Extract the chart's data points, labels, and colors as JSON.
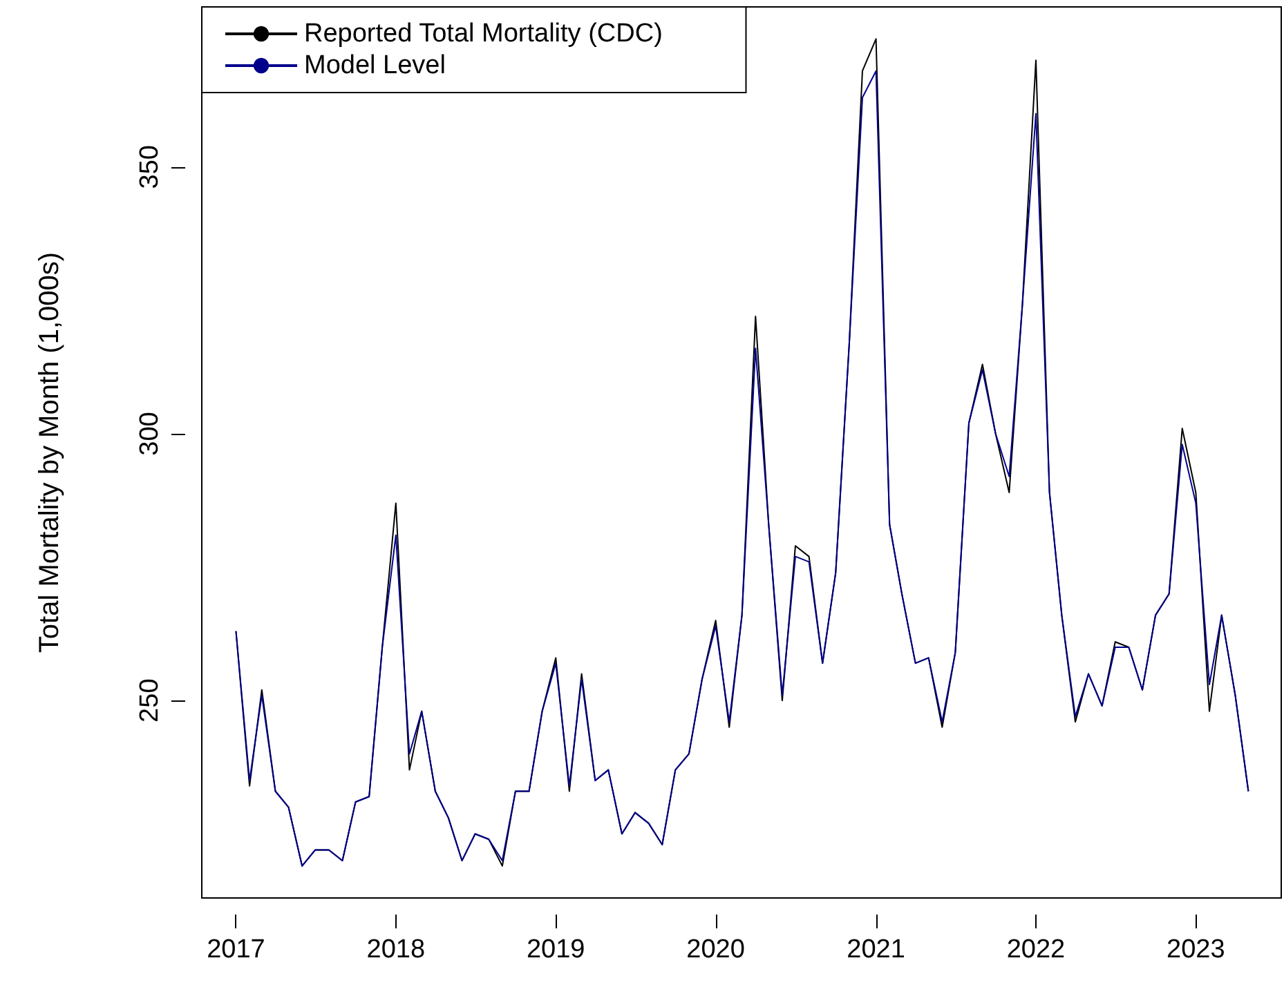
{
  "chart_data": {
    "type": "line",
    "ylabel": "Total Mortality by Month (1,000s)",
    "x": [
      "2017-01",
      "2017-02",
      "2017-03",
      "2017-04",
      "2017-05",
      "2017-06",
      "2017-07",
      "2017-08",
      "2017-09",
      "2017-10",
      "2017-11",
      "2017-12",
      "2018-01",
      "2018-02",
      "2018-03",
      "2018-04",
      "2018-05",
      "2018-06",
      "2018-07",
      "2018-08",
      "2018-09",
      "2018-10",
      "2018-11",
      "2018-12",
      "2019-01",
      "2019-02",
      "2019-03",
      "2019-04",
      "2019-05",
      "2019-06",
      "2019-07",
      "2019-08",
      "2019-09",
      "2019-10",
      "2019-11",
      "2019-12",
      "2020-01",
      "2020-02",
      "2020-03",
      "2020-04",
      "2020-05",
      "2020-06",
      "2020-07",
      "2020-08",
      "2020-09",
      "2020-10",
      "2020-11",
      "2020-12",
      "2021-01",
      "2021-02",
      "2021-03",
      "2021-04",
      "2021-05",
      "2021-06",
      "2021-07",
      "2021-08",
      "2021-09",
      "2021-10",
      "2021-11",
      "2021-12",
      "2022-01",
      "2022-02",
      "2022-03",
      "2022-04",
      "2022-05",
      "2022-06",
      "2022-07",
      "2022-08",
      "2022-09",
      "2022-10",
      "2022-11",
      "2022-12",
      "2023-01",
      "2023-02",
      "2023-03",
      "2023-04",
      "2023-05"
    ],
    "series": [
      {
        "name": "Reported Total Mortality (CDC)",
        "color": "#000000",
        "values": [
          263,
          234,
          252,
          233,
          230,
          219,
          222,
          222,
          220,
          231,
          232,
          260,
          287,
          237,
          248,
          233,
          228,
          220,
          225,
          224,
          219,
          233,
          233,
          248,
          258,
          233,
          255,
          235,
          237,
          225,
          229,
          227,
          223,
          237,
          240,
          254,
          265,
          245,
          266,
          322,
          283,
          250,
          279,
          277,
          257,
          274,
          317,
          368,
          374,
          283,
          270,
          257,
          258,
          245,
          259,
          302,
          313,
          300,
          289,
          324,
          370,
          289,
          266,
          246,
          255,
          249,
          261,
          260,
          252,
          266,
          270,
          301,
          289,
          248,
          266,
          251,
          233
        ]
      },
      {
        "name": "Model Level",
        "color": "#00008b",
        "values": [
          263,
          235,
          251,
          233,
          230,
          219,
          222,
          222,
          220,
          231,
          232,
          260,
          281,
          240,
          248,
          233,
          228,
          220,
          225,
          224,
          220,
          233,
          233,
          248,
          257,
          234,
          254,
          235,
          237,
          225,
          229,
          227,
          223,
          237,
          240,
          254,
          264,
          246,
          266,
          316,
          283,
          251,
          277,
          276,
          257,
          274,
          317,
          363,
          368,
          283,
          270,
          257,
          258,
          246,
          259,
          302,
          312,
          300,
          292,
          324,
          360,
          289,
          266,
          247,
          255,
          249,
          260,
          260,
          252,
          266,
          270,
          298,
          287,
          253,
          266,
          251,
          233
        ]
      }
    ],
    "xlim": [
      "2016-10-15",
      "2023-07-15"
    ],
    "xticks": [
      "2017",
      "2018",
      "2019",
      "2020",
      "2021",
      "2022",
      "2023"
    ],
    "ylim": [
      213,
      380
    ],
    "yticks": [
      250,
      300,
      350
    ],
    "grid": false,
    "legend": "top left",
    "marker": "none",
    "line_style": "solid"
  }
}
